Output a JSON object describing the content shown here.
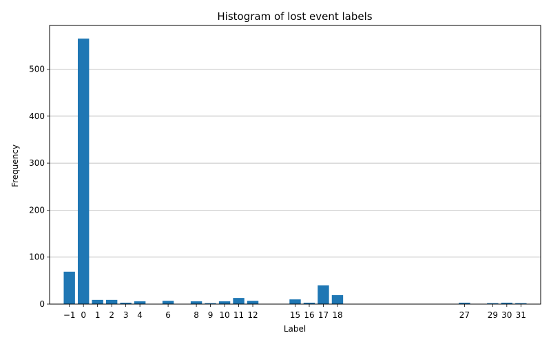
{
  "chart_data": {
    "type": "bar",
    "title": "Histogram of lost event labels",
    "xlabel": "Label",
    "ylabel": "Frequency",
    "x": [
      -1,
      0,
      1,
      2,
      3,
      4,
      6,
      8,
      9,
      10,
      11,
      12,
      15,
      16,
      17,
      18,
      27,
      29,
      30,
      31
    ],
    "x_tick_labels": [
      "−1",
      "0",
      "1",
      "2",
      "3",
      "4",
      "6",
      "8",
      "9",
      "10",
      "11",
      "12",
      "15",
      "16",
      "17",
      "18",
      "27",
      "29",
      "30",
      "31"
    ],
    "values": [
      69,
      565,
      9,
      9,
      3,
      6,
      7,
      6,
      2,
      6,
      13,
      7,
      10,
      3,
      40,
      19,
      3,
      2,
      3,
      2
    ],
    "y_ticks": [
      0,
      100,
      200,
      300,
      400,
      500
    ],
    "xlim": [
      -2.4,
      32.4
    ],
    "ylim": [
      0,
      593
    ],
    "grid": "y",
    "bar_color": "#1f77b4"
  }
}
